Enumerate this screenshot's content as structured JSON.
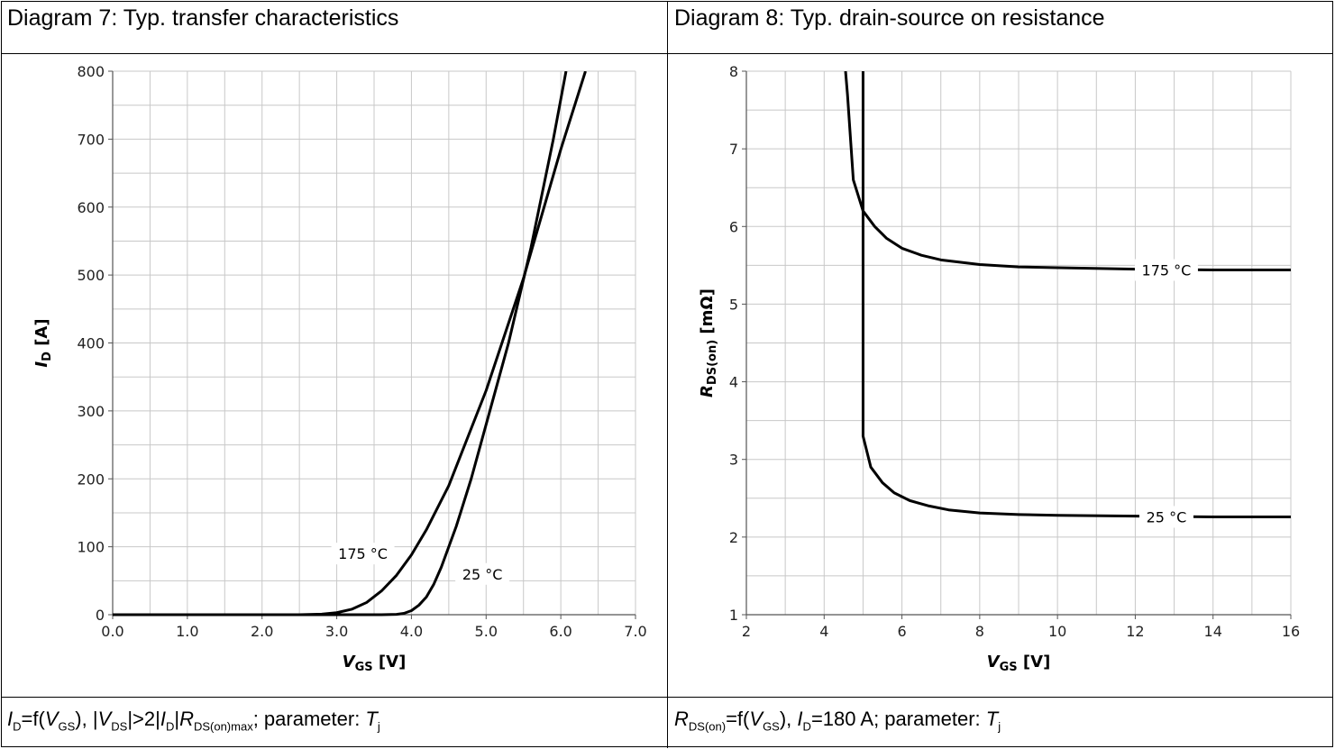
{
  "panels": [
    {
      "title": "Diagram 7: Typ. transfer characteristics",
      "caption": {
        "parts": [
          {
            "t": "I",
            "i": true
          },
          {
            "t": "D",
            "sub": true
          },
          {
            "t": "=f("
          },
          {
            "t": "V",
            "i": true
          },
          {
            "t": "GS",
            "sub": true
          },
          {
            "t": "), |"
          },
          {
            "t": "V",
            "i": true
          },
          {
            "t": "DS",
            "sub": true
          },
          {
            "t": "|>2|"
          },
          {
            "t": "I",
            "i": true
          },
          {
            "t": "D",
            "sub": true
          },
          {
            "t": "|"
          },
          {
            "t": "R",
            "i": true
          },
          {
            "t": "DS(on)max",
            "sub": true
          },
          {
            "t": "; parameter: "
          },
          {
            "t": "T",
            "i": true
          },
          {
            "t": "j",
            "sub": true
          }
        ]
      }
    },
    {
      "title": "Diagram 8: Typ. drain-source on resistance",
      "caption": {
        "parts": [
          {
            "t": "R",
            "i": true
          },
          {
            "t": "DS(on)",
            "sub": true
          },
          {
            "t": "=f("
          },
          {
            "t": "V",
            "i": true
          },
          {
            "t": "GS",
            "sub": true
          },
          {
            "t": "), "
          },
          {
            "t": "I",
            "i": true
          },
          {
            "t": "D",
            "sub": true
          },
          {
            "t": "=180 A; parameter: "
          },
          {
            "t": "T",
            "i": true
          },
          {
            "t": "j",
            "sub": true
          }
        ]
      }
    }
  ],
  "chart_data": [
    {
      "type": "line",
      "title": "Diagram 7: Typ. transfer characteristics",
      "xlabel": {
        "main": "V",
        "sub": "GS",
        "unit": " [V]"
      },
      "ylabel": {
        "main": "I",
        "sub": "D",
        "unit": " [A]"
      },
      "xlim": [
        0,
        7
      ],
      "ylim": [
        0,
        800
      ],
      "xticks": [
        0,
        1,
        2,
        3,
        4,
        5,
        6,
        7
      ],
      "xtick_labels": [
        "0.0",
        "1.0",
        "2.0",
        "3.0",
        "4.0",
        "5.0",
        "6.0",
        "7.0"
      ],
      "yticks": [
        0,
        100,
        200,
        300,
        400,
        500,
        600,
        700,
        800
      ],
      "ytick_labels": [
        "0",
        "100",
        "200",
        "300",
        "400",
        "500",
        "600",
        "700",
        "800"
      ],
      "grid": true,
      "series": [
        {
          "name": "175 °C",
          "x": [
            0,
            2.5,
            2.8,
            3.0,
            3.2,
            3.4,
            3.6,
            3.8,
            4.0,
            4.2,
            4.5,
            5.0,
            5.5,
            6.0,
            6.33
          ],
          "y": [
            0,
            0,
            0.8,
            3,
            8,
            18,
            35,
            58,
            88,
            125,
            190,
            330,
            495,
            685,
            800
          ]
        },
        {
          "name": "25 °C",
          "x": [
            0,
            3.6,
            3.8,
            3.9,
            4.0,
            4.1,
            4.2,
            4.3,
            4.4,
            4.6,
            4.8,
            5.0,
            5.3,
            5.6,
            5.9,
            6.07
          ],
          "y": [
            0,
            0,
            0.5,
            2,
            6,
            14,
            26,
            45,
            70,
            130,
            200,
            280,
            400,
            540,
            700,
            800
          ]
        }
      ],
      "labels": [
        {
          "series": "175 °C",
          "text": "175 °C",
          "x": 3.35,
          "y": 90
        },
        {
          "series": "25 °C",
          "text": "25 °C",
          "x": 4.95,
          "y": 60
        }
      ]
    },
    {
      "type": "line",
      "title": "Diagram 8: Typ. drain-source on resistance",
      "xlabel": {
        "main": "V",
        "sub": "GS",
        "unit": " [V]"
      },
      "ylabel": {
        "main": "R",
        "sub": "DS(on)",
        "unit": " [mΩ]"
      },
      "xlim": [
        2,
        16
      ],
      "ylim": [
        1,
        8
      ],
      "xticks": [
        2,
        4,
        6,
        8,
        10,
        12,
        14,
        16
      ],
      "xtick_labels": [
        "2",
        "4",
        "6",
        "8",
        "10",
        "12",
        "14",
        "16"
      ],
      "yticks": [
        1,
        2,
        3,
        4,
        5,
        6,
        7,
        8
      ],
      "ytick_labels": [
        "1",
        "2",
        "3",
        "4",
        "5",
        "6",
        "7",
        "8"
      ],
      "grid": true,
      "series": [
        {
          "name": "175 °C",
          "x": [
            4.55,
            4.6,
            4.75,
            5.0,
            5.3,
            5.6,
            6.0,
            6.5,
            7.0,
            8.0,
            9.0,
            10.0,
            12.0,
            14.0,
            16.0
          ],
          "y": [
            8.0,
            7.7,
            6.6,
            6.2,
            6.0,
            5.85,
            5.72,
            5.63,
            5.57,
            5.51,
            5.48,
            5.47,
            5.45,
            5.44,
            5.44
          ]
        },
        {
          "name": "25 °C",
          "x": [
            5.0,
            5.0,
            5.0,
            5.2,
            5.5,
            5.8,
            6.2,
            6.7,
            7.2,
            8.0,
            9.0,
            10.0,
            12.0,
            14.0,
            16.0
          ],
          "y": [
            8.0,
            5.0,
            3.3,
            2.9,
            2.7,
            2.57,
            2.47,
            2.4,
            2.35,
            2.31,
            2.29,
            2.28,
            2.27,
            2.26,
            2.26
          ]
        }
      ],
      "labels": [
        {
          "series": "175 °C",
          "text": "175 °C",
          "x": 12.8,
          "y": 5.44
        },
        {
          "series": "25 °C",
          "text": "25 °C",
          "x": 12.8,
          "y": 2.26
        }
      ]
    }
  ]
}
